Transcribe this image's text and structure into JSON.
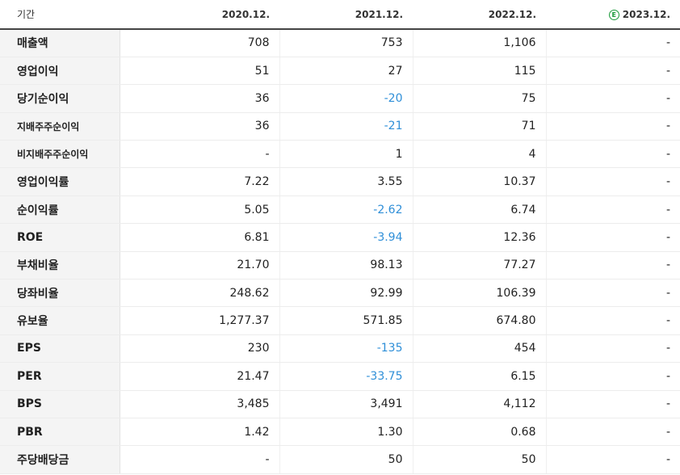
{
  "header": {
    "label": "기간",
    "periods": [
      "2020.12.",
      "2021.12.",
      "2022.12.",
      "2023.12."
    ],
    "estimate_badge": "E"
  },
  "rows": [
    {
      "label": "매출액",
      "values": [
        "708",
        "753",
        "1,106",
        "-"
      ],
      "small": false,
      "sep": false
    },
    {
      "label": "영업이익",
      "values": [
        "51",
        "27",
        "115",
        "-"
      ],
      "small": false,
      "sep": false
    },
    {
      "label": "당기순이익",
      "values": [
        "36",
        "-20",
        "75",
        "-"
      ],
      "small": false,
      "sep": false
    },
    {
      "label": "지배주주순이익",
      "values": [
        "36",
        "-21",
        "71",
        "-"
      ],
      "small": true,
      "sep": false
    },
    {
      "label": "비지배주주순이익",
      "values": [
        "-",
        "1",
        "4",
        "-"
      ],
      "small": true,
      "sep": false
    },
    {
      "label": "영업이익률",
      "values": [
        "7.22",
        "3.55",
        "10.37",
        "-"
      ],
      "small": false,
      "sep": true
    },
    {
      "label": "순이익률",
      "values": [
        "5.05",
        "-2.62",
        "6.74",
        "-"
      ],
      "small": false,
      "sep": false
    },
    {
      "label": "ROE",
      "values": [
        "6.81",
        "-3.94",
        "12.36",
        "-"
      ],
      "small": false,
      "sep": false
    },
    {
      "label": "부채비율",
      "values": [
        "21.70",
        "98.13",
        "77.27",
        "-"
      ],
      "small": false,
      "sep": true
    },
    {
      "label": "당좌비율",
      "values": [
        "248.62",
        "92.99",
        "106.39",
        "-"
      ],
      "small": false,
      "sep": false
    },
    {
      "label": "유보율",
      "values": [
        "1,277.37",
        "571.85",
        "674.80",
        "-"
      ],
      "small": false,
      "sep": false
    },
    {
      "label": "EPS",
      "values": [
        "230",
        "-135",
        "454",
        "-"
      ],
      "small": false,
      "sep": true
    },
    {
      "label": "PER",
      "values": [
        "21.47",
        "-33.75",
        "6.15",
        "-"
      ],
      "small": false,
      "sep": false
    },
    {
      "label": "BPS",
      "values": [
        "3,485",
        "3,491",
        "4,112",
        "-"
      ],
      "small": false,
      "sep": false
    },
    {
      "label": "PBR",
      "values": [
        "1.42",
        "1.30",
        "0.68",
        "-"
      ],
      "small": false,
      "sep": false
    },
    {
      "label": "주당배당금",
      "values": [
        "-",
        "50",
        "50",
        "-"
      ],
      "small": false,
      "sep": true
    }
  ],
  "colors": {
    "negative": "#2f8fd8",
    "estimate": "#1a9a3a"
  }
}
